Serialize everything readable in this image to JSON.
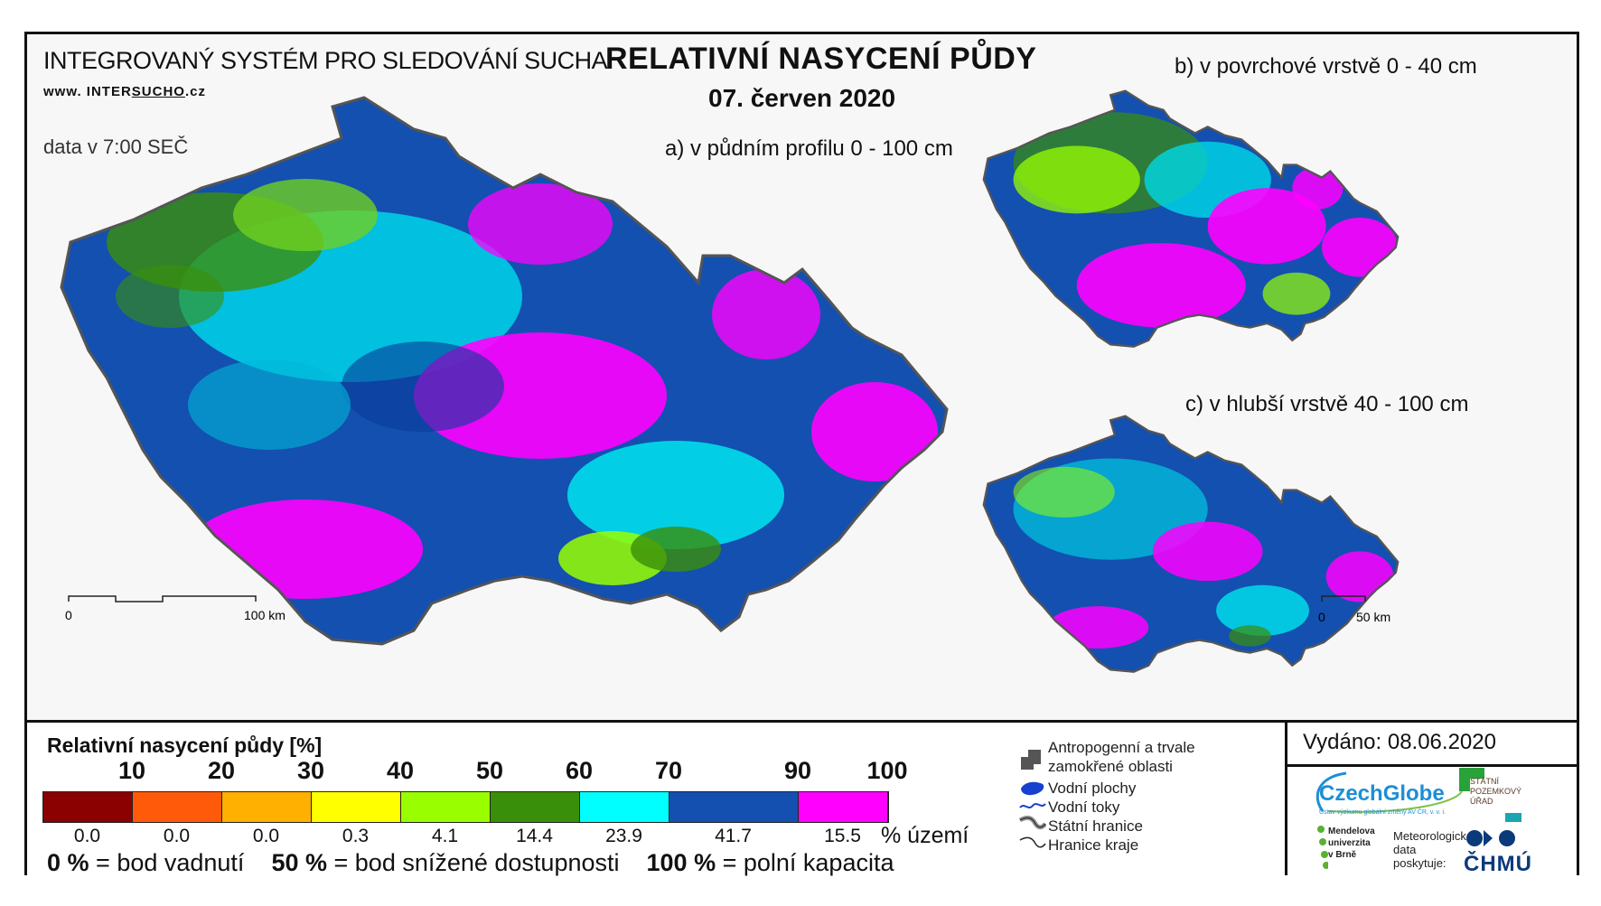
{
  "header": {
    "system_title": "INTEGROVANÝ SYSTÉM PRO SLEDOVÁNÍ SUCHA",
    "website_prefix": "www. INTER",
    "website_mid": "SUCHO",
    "website_suffix": ".cz",
    "data_time": "data v 7:00 SEČ",
    "main_title": "RELATIVNÍ NASYCENÍ PŮDY",
    "date": "07. červen 2020"
  },
  "maps": {
    "a_label": "a) v půdním profilu 0 - 100 cm",
    "b_label": "b) v povrchové vrstvě 0 - 40 cm",
    "c_label": "c) v hlubší vrstvě 40 - 100 cm",
    "scale_main": {
      "start": "0",
      "end": "100 km"
    },
    "scale_small": {
      "start": "0",
      "end": "50 km"
    }
  },
  "legend": {
    "title": "Relativní nasycení půdy [%]",
    "ticks": [
      "10",
      "20",
      "30",
      "40",
      "50",
      "60",
      "70",
      "90",
      "100"
    ],
    "classes": [
      {
        "color": "#8b0000",
        "area_pct": "0.0"
      },
      {
        "color": "#ff5a0a",
        "area_pct": "0.0"
      },
      {
        "color": "#ffb000",
        "area_pct": "0.0"
      },
      {
        "color": "#ffff00",
        "area_pct": "0.3"
      },
      {
        "color": "#99ff00",
        "area_pct": "4.1"
      },
      {
        "color": "#3a8f0a",
        "area_pct": "14.4"
      },
      {
        "color": "#00ffff",
        "area_pct": "23.9"
      },
      {
        "color": "#1350b0",
        "area_pct": "41.7"
      },
      {
        "color": "#ff00ff",
        "area_pct": "15.5"
      }
    ],
    "area_unit": "% území",
    "def_0_val": "0 %",
    "def_0_text": "= bod vadnutí",
    "def_50_val": "50 %",
    "def_50_text": "= bod snížené dostupnosti",
    "def_100_val": "100 %",
    "def_100_text": "= polní kapacita"
  },
  "key": {
    "anthropogenic": "Antropogenní a trvale zamokřené oblasti",
    "water_areas": "Vodní plochy",
    "water_flows": "Vodní toky",
    "state_border": "Státní hranice",
    "region_border": "Hranice kraje"
  },
  "issued": "Vydáno: 08.06.2020",
  "logos": {
    "czechglobe": "CzechGlobe",
    "czechglobe_sub": "Ústav výzkumu globální změny AV ČR, v. v. i.",
    "spu": [
      "STÁTNÍ",
      "POZEMKOVÝ",
      "ÚŘAD"
    ],
    "mendel": [
      "Mendelova",
      "univerzita",
      "v Brně"
    ],
    "meteo": [
      "Meteorologická",
      "data",
      "poskytuje:"
    ],
    "chmu": "ČHMÚ"
  }
}
